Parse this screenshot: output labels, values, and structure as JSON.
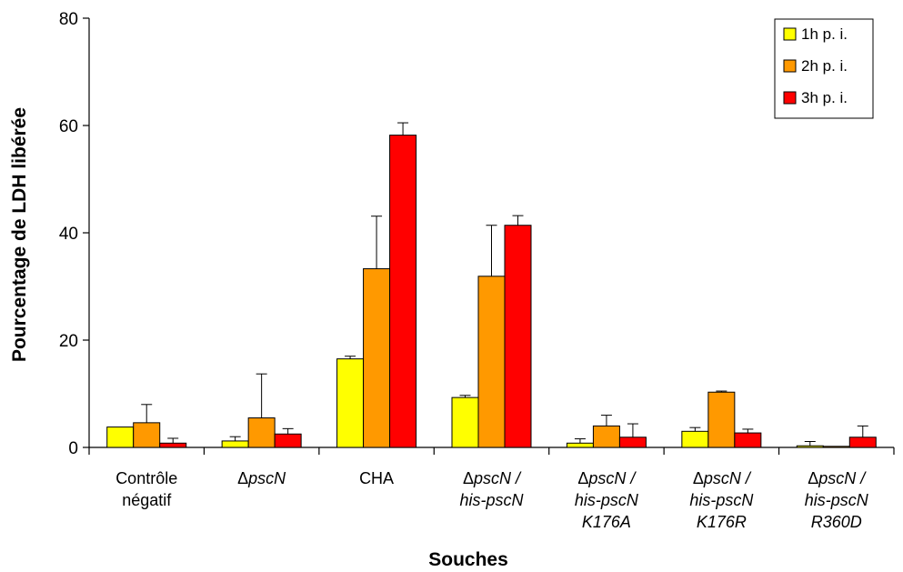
{
  "chart_data": {
    "type": "bar",
    "xlabel": "Souches",
    "ylabel": "Pourcentage de LDH libérée",
    "ylim": [
      0,
      80
    ],
    "yticks": [
      "0",
      "20",
      "40",
      "60",
      "80"
    ],
    "grid": false,
    "legend_position": "top-right",
    "categories": [
      {
        "lines": [
          {
            "text": "Contrôle",
            "style": "normal"
          },
          {
            "text": "négatif",
            "style": "normal"
          }
        ]
      },
      {
        "lines": [
          {
            "parts": [
              {
                "text": "Δ",
                "style": "normal"
              },
              {
                "text": "pscN",
                "style": "italic"
              }
            ]
          }
        ]
      },
      {
        "lines": [
          {
            "text": "CHA",
            "style": "normal"
          }
        ]
      },
      {
        "lines": [
          {
            "parts": [
              {
                "text": "Δ",
                "style": "normal"
              },
              {
                "text": "pscN /",
                "style": "italic"
              }
            ]
          },
          {
            "text": "his-pscN",
            "style": "italic"
          }
        ]
      },
      {
        "lines": [
          {
            "parts": [
              {
                "text": "Δ",
                "style": "normal"
              },
              {
                "text": "pscN /",
                "style": "italic"
              }
            ]
          },
          {
            "text": "his-pscN",
            "style": "italic"
          },
          {
            "text": "K176A",
            "style": "italic"
          }
        ]
      },
      {
        "lines": [
          {
            "parts": [
              {
                "text": "Δ",
                "style": "normal"
              },
              {
                "text": "pscN /",
                "style": "italic"
              }
            ]
          },
          {
            "text": "his-pscN",
            "style": "italic"
          },
          {
            "text": "K176R",
            "style": "italic"
          }
        ]
      },
      {
        "lines": [
          {
            "parts": [
              {
                "text": "Δ",
                "style": "normal"
              },
              {
                "text": "pscN /",
                "style": "italic"
              }
            ]
          },
          {
            "text": "his-pscN",
            "style": "italic"
          },
          {
            "text": "R360D",
            "style": "italic"
          }
        ]
      }
    ],
    "series": [
      {
        "name": "1h p. i.",
        "color": "#FFFF00",
        "values": [
          3.8,
          1.2,
          16.5,
          9.3,
          0.8,
          3.0,
          0.3
        ],
        "errors": [
          0,
          0.8,
          0.5,
          0.4,
          0.8,
          0.7,
          0.8
        ]
      },
      {
        "name": "2h p. i.",
        "color": "#FF9900",
        "values": [
          4.6,
          5.5,
          33.3,
          31.9,
          4.0,
          10.3,
          0.2
        ],
        "errors": [
          3.4,
          8.2,
          9.8,
          9.5,
          2.0,
          0.2,
          0
        ]
      },
      {
        "name": "3h p. i.",
        "color": "#FF0000",
        "values": [
          0.8,
          2.5,
          58.2,
          41.4,
          1.9,
          2.7,
          1.9
        ],
        "errors": [
          0.9,
          1.0,
          2.3,
          1.8,
          2.5,
          0.7,
          2.1
        ]
      }
    ]
  }
}
